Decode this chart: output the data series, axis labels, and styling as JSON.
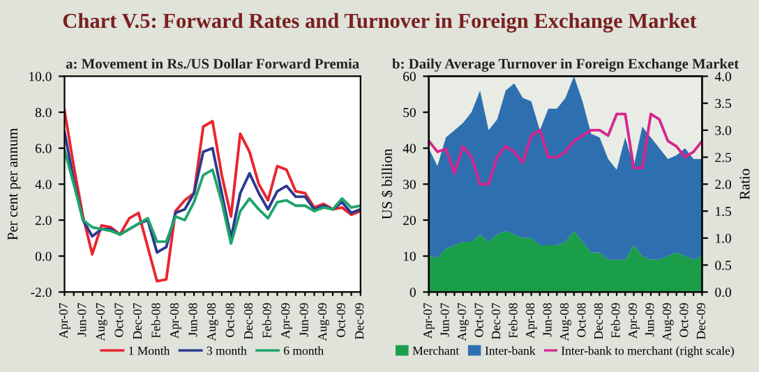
{
  "chart_data": [
    {
      "type": "line",
      "title": "a: Movement in Rs./US Dollar Forward Premia",
      "ylabel": "Per cent per annum",
      "annotations": [
        "Chart V.5: Forward Rates and Turnover in Foreign Exchange Market"
      ],
      "categories": [
        "Apr-07",
        null,
        "Jun-07",
        null,
        "Aug-07",
        null,
        "Oct-07",
        null,
        "Dec-07",
        null,
        "Feb-08",
        null,
        "Apr-08",
        null,
        "Jun-08",
        null,
        "Aug-08",
        null,
        "Oct-08",
        null,
        "Dec-08",
        null,
        "Feb-09",
        null,
        "Apr-09",
        null,
        "Jun-09",
        null,
        "Aug-09",
        null,
        "Oct-09",
        null,
        "Dec-09"
      ],
      "series": [
        {
          "name": "1 Month",
          "color": "#e8262e",
          "values": [
            8.1,
            5.0,
            2.2,
            0.1,
            1.7,
            1.6,
            1.2,
            2.1,
            2.4,
            0.5,
            -1.4,
            -1.3,
            2.5,
            3.1,
            3.5,
            7.2,
            7.5,
            4.5,
            2.2,
            6.8,
            5.8,
            4.0,
            3.1,
            5.0,
            4.8,
            3.6,
            3.5,
            2.7,
            2.9,
            2.6,
            2.7,
            2.3,
            2.5
          ]
        },
        {
          "name": "3 month",
          "color": "#2b3a8f",
          "values": [
            6.9,
            4.2,
            2.0,
            1.1,
            1.5,
            1.5,
            1.2,
            1.5,
            1.8,
            2.0,
            0.2,
            0.5,
            2.4,
            2.6,
            3.5,
            5.8,
            6.0,
            3.5,
            1.0,
            3.5,
            4.6,
            3.5,
            2.6,
            3.6,
            3.9,
            3.3,
            3.3,
            2.6,
            2.8,
            2.6,
            3.0,
            2.4,
            2.6
          ]
        },
        {
          "name": "6 month",
          "color": "#1fa56a",
          "values": [
            5.9,
            4.0,
            2.0,
            1.6,
            1.5,
            1.4,
            1.2,
            1.5,
            1.8,
            2.1,
            0.8,
            0.8,
            2.2,
            2.0,
            3.0,
            4.5,
            4.8,
            3.0,
            0.7,
            2.5,
            3.2,
            2.6,
            2.1,
            3.0,
            3.1,
            2.8,
            2.8,
            2.5,
            2.7,
            2.6,
            3.2,
            2.7,
            2.8
          ]
        }
      ],
      "ylim": [
        -2,
        10
      ],
      "yticks": [
        {
          "value": -2,
          "label": "-2.0"
        },
        {
          "value": 0,
          "label": "0.0"
        },
        {
          "value": 2,
          "label": "2.0"
        },
        {
          "value": 4,
          "label": "4.0"
        },
        {
          "value": 6,
          "label": "6.0"
        },
        {
          "value": 8,
          "label": "8.0"
        },
        {
          "value": 10,
          "label": "10.0"
        }
      ],
      "legend": "bottom",
      "grid": false
    },
    {
      "type": "area",
      "stacked": true,
      "title": "b: Daily Average Turnover in Foreign Exchange Market",
      "ylabel": "US $ billion",
      "y2label": "Ratio",
      "categories": [
        "Apr-07",
        null,
        "Jun-07",
        null,
        "Aug-07",
        null,
        "Oct-07",
        null,
        "Dec-07",
        null,
        "Feb-08",
        null,
        "Apr-08",
        null,
        "Jun-08",
        null,
        "Aug-08",
        null,
        "Oct-08",
        null,
        "Dec-08",
        null,
        "Feb-09",
        null,
        "Apr-09",
        null,
        "Jun-09",
        null,
        "Aug-09",
        null,
        "Oct-09",
        null,
        "Dec-09"
      ],
      "series": [
        {
          "name": "Merchant",
          "color": "#1a9e4a",
          "values": [
            10,
            9.5,
            12,
            13,
            14,
            14,
            16,
            14,
            16,
            17,
            16,
            15,
            15,
            13,
            13,
            13,
            14,
            17,
            14,
            11,
            11,
            9,
            9,
            9,
            13,
            10,
            9,
            9,
            10,
            11,
            10,
            9,
            10
          ]
        },
        {
          "name": "Inter-bank",
          "color": "#2e6fb0",
          "values": [
            30,
            25.5,
            31,
            32,
            33,
            36,
            40,
            31,
            32,
            39,
            42,
            39,
            38,
            32,
            38,
            38,
            40,
            43,
            39,
            33,
            32,
            28,
            25,
            34,
            22,
            36,
            34,
            31,
            27,
            27,
            30,
            28,
            27
          ]
        },
        {
          "name": "Inter-bank to merchant (right scale)",
          "type": "line",
          "axis": "y2",
          "color": "#d6268f",
          "values": [
            2.8,
            2.6,
            2.65,
            2.2,
            2.7,
            2.5,
            2.0,
            2.0,
            2.5,
            2.7,
            2.6,
            2.4,
            2.9,
            3.0,
            2.5,
            2.5,
            2.6,
            2.8,
            2.9,
            3.0,
            3.0,
            2.9,
            3.3,
            3.3,
            2.3,
            2.3,
            3.3,
            3.2,
            2.8,
            2.7,
            2.5,
            2.6,
            2.8
          ]
        }
      ],
      "ylim": [
        0,
        60
      ],
      "yticks": [
        0,
        10,
        20,
        30,
        40,
        50,
        60
      ],
      "y2lim": [
        0,
        4
      ],
      "y2ticks": [
        {
          "value": 0,
          "label": "0.0"
        },
        {
          "value": 0.5,
          "label": "0.5"
        },
        {
          "value": 1,
          "label": "1.0"
        },
        {
          "value": 1.5,
          "label": "1.5"
        },
        {
          "value": 2,
          "label": "2.0"
        },
        {
          "value": 2.5,
          "label": "2.5"
        },
        {
          "value": 3,
          "label": "3.0"
        },
        {
          "value": 3.5,
          "label": "3.5"
        },
        {
          "value": 4,
          "label": "4.0"
        }
      ],
      "legend": "bottom",
      "grid": false
    }
  ]
}
